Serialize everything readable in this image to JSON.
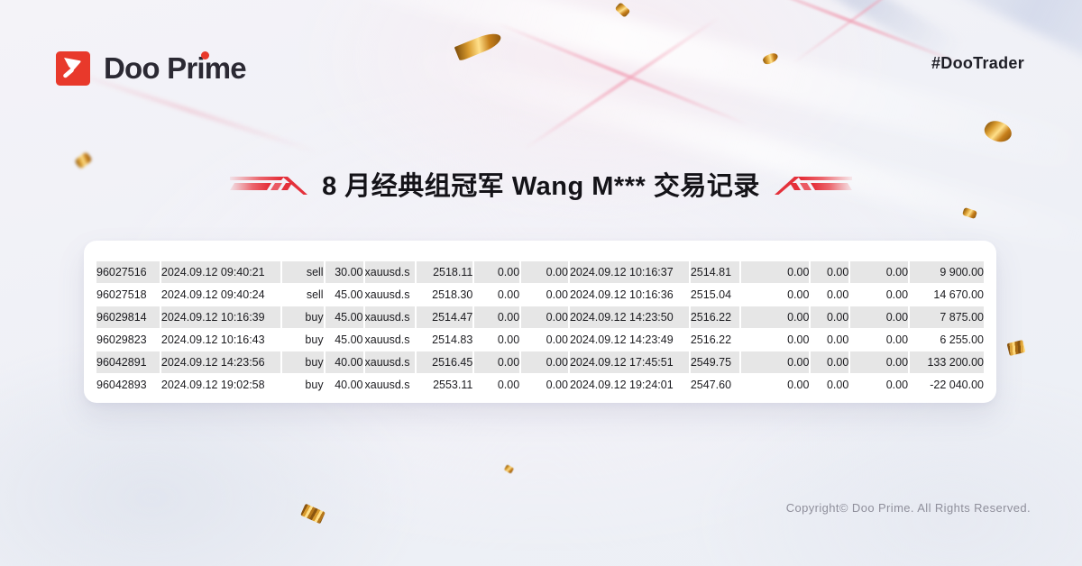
{
  "brand": {
    "wordmark": "Doo Prime",
    "hashtag": "#DooTrader",
    "brand_red": "#e8392b"
  },
  "title": {
    "text": "8 月经典组冠军 Wang M*** 交易记录"
  },
  "trade_table": {
    "rows": [
      [
        "96027516",
        "2024.09.12 09:40:21",
        "sell",
        "30.00",
        "xauusd.s",
        "2518.11",
        "0.00",
        "0.00",
        "2024.09.12 10:16:37",
        "2514.81",
        "0.00",
        "0.00",
        "0.00",
        "9 900.00"
      ],
      [
        "96027518",
        "2024.09.12 09:40:24",
        "sell",
        "45.00",
        "xauusd.s",
        "2518.30",
        "0.00",
        "0.00",
        "2024.09.12 10:16:36",
        "2515.04",
        "0.00",
        "0.00",
        "0.00",
        "14 670.00"
      ],
      [
        "96029814",
        "2024.09.12 10:16:39",
        "buy",
        "45.00",
        "xauusd.s",
        "2514.47",
        "0.00",
        "0.00",
        "2024.09.12 14:23:50",
        "2516.22",
        "0.00",
        "0.00",
        "0.00",
        "7 875.00"
      ],
      [
        "96029823",
        "2024.09.12 10:16:43",
        "buy",
        "45.00",
        "xauusd.s",
        "2514.83",
        "0.00",
        "0.00",
        "2024.09.12 14:23:49",
        "2516.22",
        "0.00",
        "0.00",
        "0.00",
        "6 255.00"
      ],
      [
        "96042891",
        "2024.09.12 14:23:56",
        "buy",
        "40.00",
        "xauusd.s",
        "2516.45",
        "0.00",
        "0.00",
        "2024.09.12 17:45:51",
        "2549.75",
        "0.00",
        "0.00",
        "0.00",
        "133 200.00"
      ],
      [
        "96042893",
        "2024.09.12 19:02:58",
        "buy",
        "40.00",
        "xauusd.s",
        "2553.11",
        "0.00",
        "0.00",
        "2024.09.12 19:24:01",
        "2547.60",
        "0.00",
        "0.00",
        "0.00",
        "-22 040.00"
      ]
    ]
  },
  "footer": {
    "copyright": "Copyright© Doo Prime. All Rights Reserved."
  },
  "colors": {
    "row_stripe": "#e6e6e6",
    "card_bg": "#ffffff",
    "gold": "#c98a2d",
    "text_dark": "#1b1b1f"
  }
}
